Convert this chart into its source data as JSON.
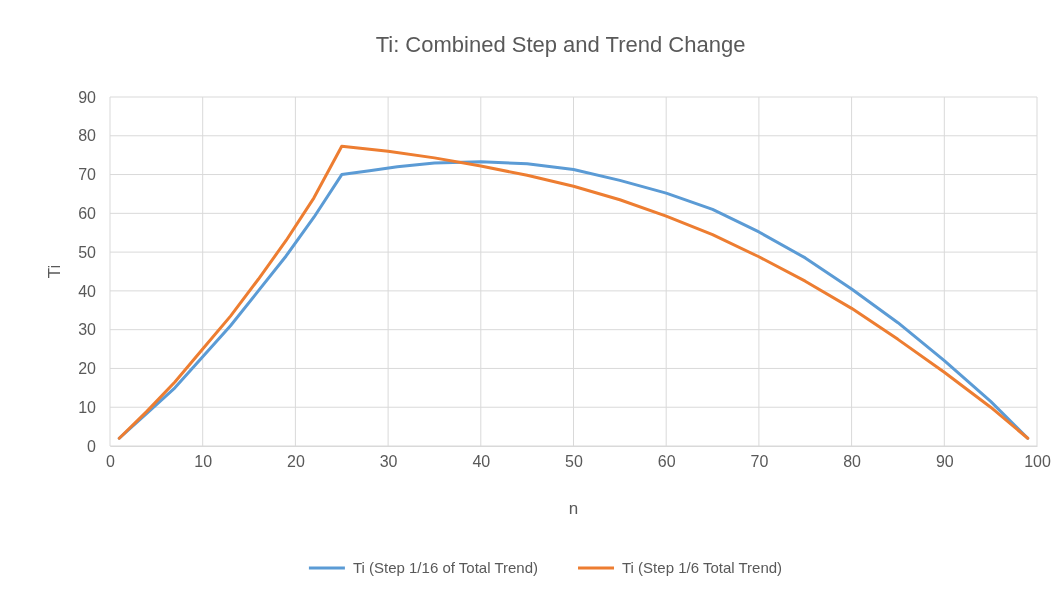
{
  "chart_data": {
    "type": "line",
    "title": "Ti: Combined Step and Trend Change",
    "xlabel": "n",
    "ylabel": "Ti",
    "xlim": [
      0,
      100
    ],
    "xticks": [
      0,
      10,
      20,
      30,
      40,
      50,
      60,
      70,
      80,
      90,
      100
    ],
    "ylim": [
      0,
      90
    ],
    "yticks": [
      0,
      10,
      20,
      30,
      40,
      50,
      60,
      70,
      80,
      90
    ],
    "grid": true,
    "legend": "bottom",
    "marker": "none",
    "line_style": "solid",
    "series": [
      {
        "name": "Ti (Step 1/16 of Total Trend)",
        "color": "#5b9bd5",
        "x": [
          1,
          4,
          7,
          10,
          13,
          16,
          19,
          22,
          25,
          28,
          31,
          35,
          40,
          45,
          50,
          55,
          60,
          65,
          70,
          75,
          80,
          85,
          90,
          95,
          99
        ],
        "values": [
          2,
          8.5,
          15,
          23,
          31,
          40,
          49,
          59,
          70,
          71,
          72,
          73,
          73.3,
          72.8,
          71.3,
          68.5,
          65.2,
          61,
          55.2,
          48.5,
          40.5,
          31.8,
          22,
          11.5,
          2
        ]
      },
      {
        "name": "Ti (Step 1/6 Total Trend)",
        "color": "#ed7d31",
        "x": [
          1,
          4,
          7,
          10,
          13,
          16,
          19,
          22,
          25,
          30,
          35,
          40,
          45,
          50,
          55,
          60,
          65,
          70,
          75,
          80,
          85,
          90,
          95,
          99
        ],
        "values": [
          2,
          9,
          16.5,
          25,
          33.5,
          43,
          53,
          64,
          77.3,
          76,
          74.3,
          72.2,
          69.8,
          67,
          63.5,
          59.3,
          54.5,
          48.8,
          42.5,
          35.5,
          27.5,
          19,
          10,
          2
        ]
      }
    ]
  }
}
